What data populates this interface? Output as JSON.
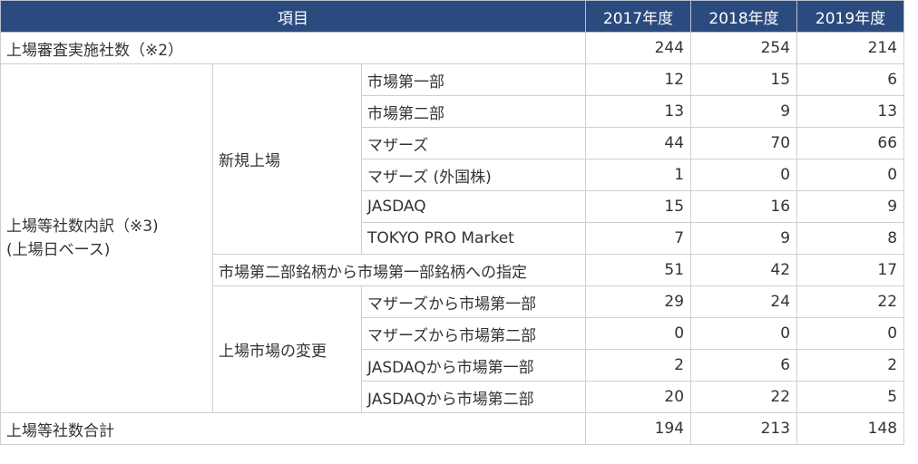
{
  "header": {
    "item": "項目",
    "years": [
      "2017年度",
      "2018年度",
      "2019年度"
    ]
  },
  "rows": {
    "review": {
      "label": "上場審査実施社数（※2）",
      "values": [
        "244",
        "254",
        "214"
      ]
    },
    "breakdown_label_line1": "上場等社数内訳（※3)",
    "breakdown_label_line2": "(上場日ベース)",
    "new_listing": {
      "label": "新規上場",
      "items": [
        {
          "label": "市場第一部",
          "values": [
            "12",
            "15",
            "6"
          ]
        },
        {
          "label": "市場第二部",
          "values": [
            "13",
            "9",
            "13"
          ]
        },
        {
          "label": "マザーズ",
          "values": [
            "44",
            "70",
            "66"
          ]
        },
        {
          "label": "マザーズ (外国株)",
          "values": [
            "1",
            "0",
            "0"
          ]
        },
        {
          "label": "JASDAQ",
          "values": [
            "15",
            "16",
            "9"
          ]
        },
        {
          "label": "TOKYO PRO Market",
          "values": [
            "7",
            "9",
            "8"
          ]
        }
      ]
    },
    "designation": {
      "label": "市場第二部銘柄から市場第一部銘柄への指定",
      "values": [
        "51",
        "42",
        "17"
      ]
    },
    "market_change": {
      "label": "上場市場の変更",
      "items": [
        {
          "label": "マザーズから市場第一部",
          "values": [
            "29",
            "24",
            "22"
          ]
        },
        {
          "label": "マザーズから市場第二部",
          "values": [
            "0",
            "0",
            "0"
          ]
        },
        {
          "label": "JASDAQから市場第一部",
          "values": [
            "2",
            "6",
            "2"
          ]
        },
        {
          "label": "JASDAQから市場第二部",
          "values": [
            "20",
            "22",
            "5"
          ]
        }
      ]
    },
    "total": {
      "label": "上場等社数合計",
      "values": [
        "194",
        "213",
        "148"
      ]
    }
  },
  "colors": {
    "header_bg": "#2b4a7e",
    "header_text": "#ffffff",
    "border": "#cfcfcf",
    "text": "#333333"
  }
}
